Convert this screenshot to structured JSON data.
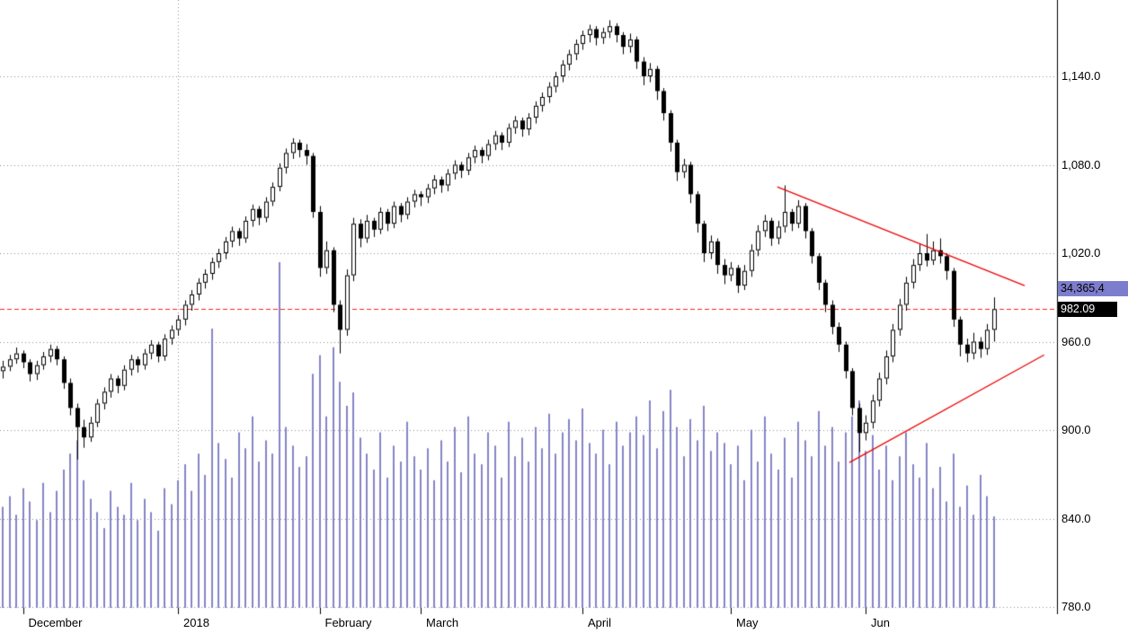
{
  "chart_data": {
    "type": "candlestick",
    "title": "",
    "grid": true,
    "legend": false,
    "y_axis": {
      "side": "right",
      "visible_range": [
        780,
        1192
      ],
      "ticks": [
        {
          "price": 1140,
          "label": "1,140.0"
        },
        {
          "price": 1080,
          "label": "1,080.0"
        },
        {
          "price": 1020,
          "label": "1,020.0"
        },
        {
          "price": 960,
          "label": "960.0"
        },
        {
          "price": 900,
          "label": "900.0"
        },
        {
          "price": 840,
          "label": "840.0"
        },
        {
          "price": 780,
          "label": "780.0"
        }
      ]
    },
    "x_axis": {
      "month_ticks": [
        {
          "label": "December",
          "index": 3
        },
        {
          "label": "2018",
          "index": 26
        },
        {
          "label": "February",
          "index": 47
        },
        {
          "label": "March",
          "index": 62
        },
        {
          "label": "April",
          "index": 86
        },
        {
          "label": "May",
          "index": 108
        },
        {
          "label": "Jun",
          "index": 128
        }
      ],
      "year_gridline_index": 26
    },
    "last_price": {
      "value": 982.09,
      "label": "982.09"
    },
    "volume_badge": {
      "label": "34,365,4",
      "anchor_price": 996
    },
    "dashed_line": {
      "price": 982.09
    },
    "trendlines": [
      {
        "from_index": 114.9,
        "from_price": 1065,
        "to_index": 151.6,
        "to_price": 998
      },
      {
        "from_index": 125.6,
        "from_price": 878,
        "to_index": 154.5,
        "to_price": 951
      }
    ],
    "colors": {
      "up_candle": "#ffffff",
      "down_candle": "#000000",
      "candle_border": "#000000",
      "volume": "#8585c8",
      "grid": "#8f8f8f",
      "trendline": "#ee0000",
      "dashed_line": "#ff2020",
      "axis_line": "#000000",
      "badge_price_bg": "#000000",
      "badge_volume_bg": "#7d7dcd"
    },
    "candles": [
      [
        940,
        947,
        935,
        943
      ],
      [
        943,
        951,
        940,
        948
      ],
      [
        948,
        956,
        945,
        952
      ],
      [
        952,
        954,
        942,
        946
      ],
      [
        946,
        948,
        933,
        938
      ],
      [
        938,
        947,
        934,
        944
      ],
      [
        944,
        953,
        941,
        950
      ],
      [
        950,
        958,
        946,
        955
      ],
      [
        955,
        957,
        944,
        948
      ],
      [
        948,
        950,
        928,
        932
      ],
      [
        932,
        935,
        910,
        915
      ],
      [
        915,
        918,
        880,
        902
      ],
      [
        902,
        907,
        888,
        895
      ],
      [
        895,
        909,
        892,
        905
      ],
      [
        905,
        921,
        902,
        918
      ],
      [
        918,
        929,
        914,
        926
      ],
      [
        926,
        938,
        922,
        935
      ],
      [
        935,
        937,
        925,
        930
      ],
      [
        930,
        944,
        927,
        941
      ],
      [
        941,
        951,
        937,
        948
      ],
      [
        948,
        950,
        939,
        944
      ],
      [
        944,
        955,
        941,
        952
      ],
      [
        952,
        961,
        948,
        958
      ],
      [
        958,
        960,
        946,
        950
      ],
      [
        950,
        965,
        947,
        962
      ],
      [
        962,
        971,
        958,
        968
      ],
      [
        968,
        978,
        964,
        975
      ],
      [
        975,
        988,
        971,
        985
      ],
      [
        985,
        995,
        981,
        992
      ],
      [
        992,
        1003,
        988,
        1000
      ],
      [
        1000,
        1009,
        996,
        1006
      ],
      [
        1006,
        1017,
        1002,
        1014
      ],
      [
        1014,
        1023,
        1010,
        1020
      ],
      [
        1020,
        1031,
        1016,
        1028
      ],
      [
        1028,
        1038,
        1024,
        1035
      ],
      [
        1035,
        1037,
        1025,
        1030
      ],
      [
        1030,
        1045,
        1027,
        1042
      ],
      [
        1042,
        1053,
        1038,
        1050
      ],
      [
        1050,
        1052,
        1039,
        1044
      ],
      [
        1044,
        1058,
        1041,
        1055
      ],
      [
        1055,
        1068,
        1052,
        1065
      ],
      [
        1065,
        1081,
        1062,
        1078
      ],
      [
        1078,
        1091,
        1074,
        1088
      ],
      [
        1088,
        1098,
        1084,
        1095
      ],
      [
        1095,
        1097,
        1085,
        1090
      ],
      [
        1090,
        1094,
        1080,
        1086
      ],
      [
        1086,
        1088,
        1044,
        1048
      ],
      [
        1048,
        1052,
        1004,
        1010
      ],
      [
        1010,
        1028,
        1006,
        1022
      ],
      [
        1022,
        1024,
        980,
        985
      ],
      [
        985,
        988,
        952,
        968
      ],
      [
        968,
        1009,
        964,
        1005
      ],
      [
        1005,
        1044,
        1001,
        1040
      ],
      [
        1040,
        1043,
        1024,
        1030
      ],
      [
        1030,
        1046,
        1027,
        1042
      ],
      [
        1042,
        1044,
        1031,
        1036
      ],
      [
        1036,
        1051,
        1033,
        1048
      ],
      [
        1048,
        1050,
        1035,
        1040
      ],
      [
        1040,
        1055,
        1037,
        1052
      ],
      [
        1052,
        1054,
        1041,
        1046
      ],
      [
        1046,
        1058,
        1043,
        1055
      ],
      [
        1055,
        1063,
        1051,
        1060
      ],
      [
        1060,
        1062,
        1052,
        1058
      ],
      [
        1058,
        1067,
        1054,
        1064
      ],
      [
        1064,
        1073,
        1060,
        1070
      ],
      [
        1070,
        1072,
        1061,
        1066
      ],
      [
        1066,
        1077,
        1062,
        1074
      ],
      [
        1074,
        1083,
        1070,
        1080
      ],
      [
        1080,
        1082,
        1071,
        1076
      ],
      [
        1076,
        1088,
        1073,
        1085
      ],
      [
        1085,
        1093,
        1081,
        1090
      ],
      [
        1090,
        1092,
        1081,
        1086
      ],
      [
        1086,
        1097,
        1083,
        1094
      ],
      [
        1094,
        1103,
        1090,
        1100
      ],
      [
        1100,
        1102,
        1090,
        1095
      ],
      [
        1095,
        1108,
        1092,
        1105
      ],
      [
        1105,
        1113,
        1101,
        1110
      ],
      [
        1110,
        1112,
        1099,
        1104
      ],
      [
        1104,
        1115,
        1100,
        1112
      ],
      [
        1112,
        1123,
        1108,
        1120
      ],
      [
        1120,
        1129,
        1116,
        1126
      ],
      [
        1126,
        1136,
        1122,
        1133
      ],
      [
        1133,
        1143,
        1129,
        1140
      ],
      [
        1140,
        1151,
        1136,
        1148
      ],
      [
        1148,
        1158,
        1144,
        1155
      ],
      [
        1155,
        1165,
        1151,
        1162
      ],
      [
        1162,
        1171,
        1158,
        1168
      ],
      [
        1168,
        1175,
        1163,
        1172
      ],
      [
        1172,
        1174,
        1161,
        1166
      ],
      [
        1166,
        1173,
        1162,
        1170
      ],
      [
        1170,
        1178,
        1166,
        1174
      ],
      [
        1174,
        1176,
        1163,
        1168
      ],
      [
        1168,
        1170,
        1155,
        1160
      ],
      [
        1160,
        1169,
        1156,
        1165
      ],
      [
        1165,
        1167,
        1145,
        1150
      ],
      [
        1150,
        1153,
        1134,
        1140
      ],
      [
        1140,
        1149,
        1136,
        1145
      ],
      [
        1145,
        1147,
        1124,
        1130
      ],
      [
        1130,
        1132,
        1110,
        1115
      ],
      [
        1115,
        1117,
        1089,
        1095
      ],
      [
        1095,
        1097,
        1069,
        1075
      ],
      [
        1075,
        1084,
        1071,
        1080
      ],
      [
        1080,
        1082,
        1054,
        1060
      ],
      [
        1060,
        1062,
        1034,
        1040
      ],
      [
        1040,
        1042,
        1014,
        1020
      ],
      [
        1020,
        1032,
        1016,
        1028
      ],
      [
        1028,
        1030,
        1006,
        1012
      ],
      [
        1012,
        1016,
        999,
        1005
      ],
      [
        1005,
        1014,
        1001,
        1010
      ],
      [
        1010,
        1012,
        993,
        998
      ],
      [
        998,
        1012,
        995,
        1008
      ],
      [
        1008,
        1026,
        1004,
        1022
      ],
      [
        1022,
        1039,
        1018,
        1035
      ],
      [
        1035,
        1046,
        1031,
        1042
      ],
      [
        1042,
        1044,
        1025,
        1030
      ],
      [
        1030,
        1042,
        1026,
        1038
      ],
      [
        1038,
        1066,
        1034,
        1048
      ],
      [
        1048,
        1050,
        1035,
        1040
      ],
      [
        1040,
        1056,
        1037,
        1052
      ],
      [
        1052,
        1054,
        1030,
        1035
      ],
      [
        1035,
        1037,
        1013,
        1018
      ],
      [
        1018,
        1020,
        995,
        1000
      ],
      [
        1000,
        1002,
        980,
        985
      ],
      [
        985,
        988,
        965,
        970
      ],
      [
        970,
        973,
        953,
        958
      ],
      [
        958,
        960,
        935,
        940
      ],
      [
        940,
        942,
        910,
        915
      ],
      [
        915,
        918,
        885,
        898
      ],
      [
        898,
        910,
        893,
        905
      ],
      [
        905,
        924,
        901,
        920
      ],
      [
        920,
        939,
        916,
        935
      ],
      [
        935,
        954,
        931,
        950
      ],
      [
        950,
        972,
        946,
        968
      ],
      [
        968,
        989,
        964,
        985
      ],
      [
        985,
        1004,
        981,
        1000
      ],
      [
        1000,
        1016,
        996,
        1012
      ],
      [
        1012,
        1026,
        1008,
        1020
      ],
      [
        1020,
        1033,
        1011,
        1015
      ],
      [
        1015,
        1028,
        1012,
        1022
      ],
      [
        1022,
        1030,
        1013,
        1018
      ],
      [
        1018,
        1020,
        1002,
        1008
      ],
      [
        1008,
        1010,
        970,
        975
      ],
      [
        975,
        977,
        950,
        958
      ],
      [
        958,
        962,
        946,
        952
      ],
      [
        952,
        966,
        948,
        960
      ],
      [
        960,
        963,
        949,
        955
      ],
      [
        955,
        972,
        951,
        968
      ],
      [
        968,
        990,
        960,
        982.09
      ]
    ],
    "volumes": [
      38,
      42,
      35,
      45,
      40,
      33,
      47,
      36,
      44,
      52,
      58,
      63,
      48,
      41,
      36,
      30,
      44,
      38,
      35,
      47,
      33,
      41,
      36,
      29,
      45,
      39,
      48,
      54,
      44,
      58,
      50,
      105,
      62,
      56,
      49,
      66,
      60,
      72,
      55,
      63,
      58,
      130,
      68,
      61,
      53,
      57,
      88,
      95,
      72,
      98,
      85,
      76,
      81,
      64,
      58,
      52,
      66,
      49,
      61,
      55,
      70,
      57,
      52,
      60,
      48,
      63,
      55,
      68,
      51,
      72,
      58,
      54,
      66,
      61,
      49,
      70,
      57,
      64,
      55,
      68,
      60,
      73,
      58,
      66,
      71,
      63,
      75,
      62,
      58,
      67,
      54,
      70,
      61,
      66,
      72,
      65,
      78,
      60,
      74,
      82,
      68,
      57,
      71,
      63,
      76,
      59,
      66,
      62,
      54,
      61,
      48,
      67,
      55,
      72,
      58,
      52,
      64,
      49,
      70,
      63,
      57,
      74,
      61,
      68,
      55,
      66,
      72,
      78,
      59,
      65,
      52,
      61,
      48,
      57,
      66,
      54,
      49,
      62,
      45,
      53,
      40,
      58,
      38,
      46,
      35,
      50,
      42,
      34.4
    ]
  }
}
